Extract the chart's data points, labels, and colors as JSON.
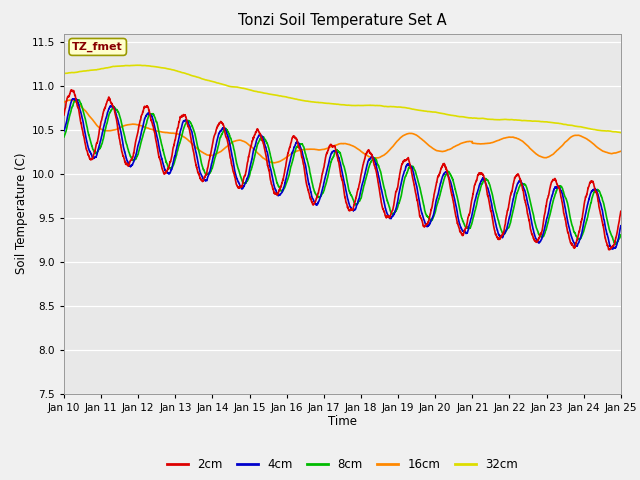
{
  "title": "Tonzi Soil Temperature Set A",
  "xlabel": "Time",
  "ylabel": "Soil Temperature (C)",
  "ylim": [
    7.5,
    11.6
  ],
  "xlim": [
    0,
    15
  ],
  "plot_bg_color": "#e8e8e8",
  "fig_bg_color": "#f0f0f0",
  "annotation_text": "TZ_fmet",
  "annotation_bg": "#ffffcc",
  "annotation_border": "#999900",
  "annotation_text_color": "#880000",
  "x_tick_labels": [
    "Jan 10",
    "Jan 11",
    "Jan 12",
    "Jan 13",
    "Jan 14",
    "Jan 15",
    "Jan 16",
    "Jan 17",
    "Jan 18",
    "Jan 19",
    "Jan 20",
    "Jan 21",
    "Jan 22",
    "Jan 23",
    "Jan 24",
    "Jan 25"
  ],
  "series": {
    "2cm": {
      "color": "#dd0000",
      "lw": 1.2
    },
    "4cm": {
      "color": "#0000cc",
      "lw": 1.2
    },
    "8cm": {
      "color": "#00bb00",
      "lw": 1.2
    },
    "16cm": {
      "color": "#ff8800",
      "lw": 1.2
    },
    "32cm": {
      "color": "#dddd00",
      "lw": 1.2
    }
  },
  "grid_color": "#ffffff",
  "tick_fontsize": 7.5,
  "figsize": [
    6.4,
    4.8
  ],
  "dpi": 100
}
